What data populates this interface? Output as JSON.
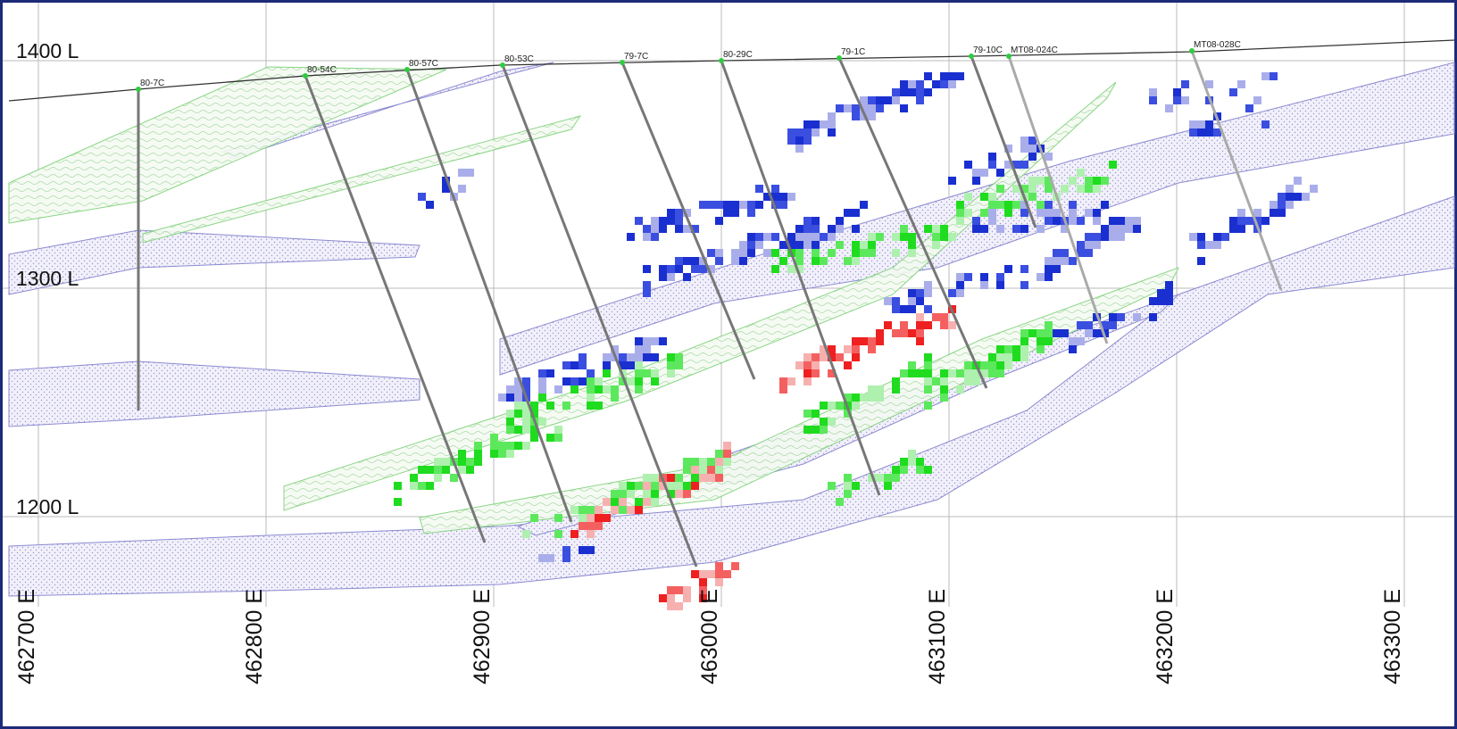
{
  "levels": [
    "1400 L",
    "1300 L",
    "1200 L"
  ],
  "eastings": [
    "462700 E",
    "462800 E",
    "462900 E",
    "463000 E",
    "463100 E",
    "463200 E",
    "463300 E"
  ],
  "drillholes": [
    "80-7C",
    "80-54C",
    "80-57C",
    "80-53C",
    "79-7C",
    "80-29C",
    "79-1C",
    "79-10C",
    "MT08-024C",
    "MT08-028C"
  ]
}
